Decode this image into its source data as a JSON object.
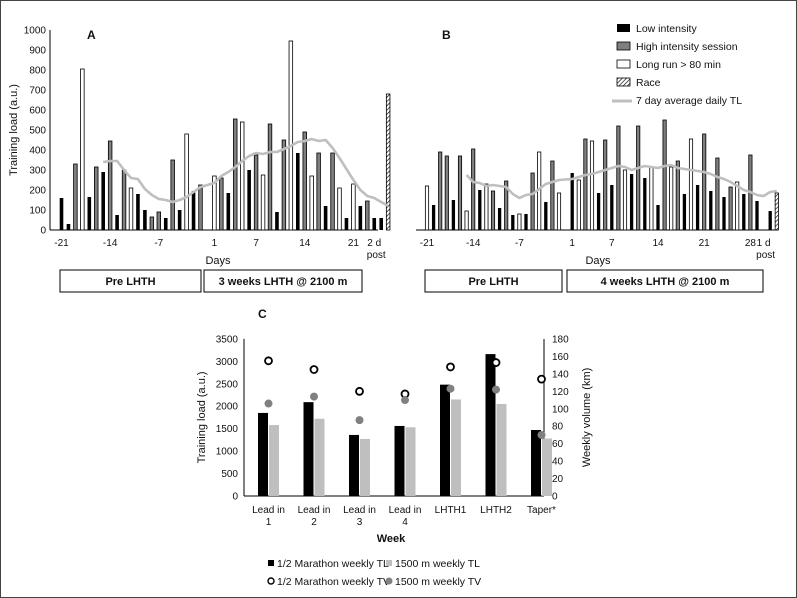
{
  "chart_data": [
    {
      "panel": "A",
      "type": "bar",
      "ylabel": "Training load (a.u.)",
      "xlabel": "Days",
      "ylim": [
        0,
        1000
      ],
      "yticks": [
        0,
        100,
        200,
        300,
        400,
        500,
        600,
        700,
        800,
        900,
        1000
      ],
      "xticks": [
        {
          "day": -21,
          "label": "-21"
        },
        {
          "day": -14,
          "label": "-14"
        },
        {
          "day": -7,
          "label": "-7"
        },
        {
          "day": 1,
          "label": "1"
        },
        {
          "day": 7,
          "label": "7"
        },
        {
          "day": 14,
          "label": "14"
        },
        {
          "day": 21,
          "label": "21"
        },
        {
          "day": 24,
          "label": "2 d"
        }
      ],
      "post_label": "post",
      "phases": [
        {
          "label": "Pre LHTH"
        },
        {
          "label": "3 weeks LHTH @ 2100 m"
        }
      ],
      "bars": [
        {
          "day": -21,
          "type": "low",
          "value": 160
        },
        {
          "day": -20,
          "type": "low",
          "value": 30
        },
        {
          "day": -19,
          "type": "high",
          "value": 330
        },
        {
          "day": -18,
          "type": "long",
          "value": 805
        },
        {
          "day": -17,
          "type": "low",
          "value": 165
        },
        {
          "day": -16,
          "type": "high",
          "value": 315
        },
        {
          "day": -15,
          "type": "low",
          "value": 290
        },
        {
          "day": -14,
          "type": "high",
          "value": 445
        },
        {
          "day": -13,
          "type": "low",
          "value": 75
        },
        {
          "day": -12,
          "type": "high",
          "value": 300
        },
        {
          "day": -11,
          "type": "long",
          "value": 210
        },
        {
          "day": -10,
          "type": "low",
          "value": 180
        },
        {
          "day": -9,
          "type": "low",
          "value": 100
        },
        {
          "day": -8,
          "type": "high",
          "value": 65
        },
        {
          "day": -7,
          "type": "high",
          "value": 90
        },
        {
          "day": -6,
          "type": "low",
          "value": 60
        },
        {
          "day": -5,
          "type": "high",
          "value": 350
        },
        {
          "day": -4,
          "type": "low",
          "value": 100
        },
        {
          "day": -3,
          "type": "long",
          "value": 480
        },
        {
          "day": -2,
          "type": "low",
          "value": 195
        },
        {
          "day": -1,
          "type": "high",
          "value": 225
        },
        {
          "day": 1,
          "type": "long",
          "value": 270
        },
        {
          "day": 2,
          "type": "high",
          "value": 260
        },
        {
          "day": 3,
          "type": "low",
          "value": 185
        },
        {
          "day": 4,
          "type": "high",
          "value": 555
        },
        {
          "day": 5,
          "type": "long",
          "value": 540
        },
        {
          "day": 6,
          "type": "low",
          "value": 300
        },
        {
          "day": 7,
          "type": "high",
          "value": 375
        },
        {
          "day": 8,
          "type": "long",
          "value": 275
        },
        {
          "day": 9,
          "type": "high",
          "value": 530
        },
        {
          "day": 10,
          "type": "low",
          "value": 90
        },
        {
          "day": 11,
          "type": "high",
          "value": 450
        },
        {
          "day": 12,
          "type": "long",
          "value": 945
        },
        {
          "day": 13,
          "type": "low",
          "value": 385
        },
        {
          "day": 14,
          "type": "high",
          "value": 490
        },
        {
          "day": 15,
          "type": "long",
          "value": 270
        },
        {
          "day": 16,
          "type": "high",
          "value": 385
        },
        {
          "day": 17,
          "type": "low",
          "value": 120
        },
        {
          "day": 18,
          "type": "high",
          "value": 385
        },
        {
          "day": 19,
          "type": "long",
          "value": 210
        },
        {
          "day": 20,
          "type": "low",
          "value": 60
        },
        {
          "day": 21,
          "type": "long",
          "value": 230
        },
        {
          "day": 22,
          "type": "low",
          "value": 120
        },
        {
          "day": 23,
          "type": "high",
          "value": 145
        },
        {
          "day": 24,
          "type": "low",
          "value": 60
        },
        {
          "day": 25,
          "type": "low",
          "value": 60
        },
        {
          "day": 26,
          "type": "race",
          "value": 680
        }
      ],
      "avg_line": [
        {
          "day": -15,
          "value": 340
        },
        {
          "day": -14,
          "value": 345
        },
        {
          "day": -13,
          "value": 345
        },
        {
          "day": -12,
          "value": 300
        },
        {
          "day": -11,
          "value": 260
        },
        {
          "day": -10,
          "value": 255
        },
        {
          "day": -9,
          "value": 205
        },
        {
          "day": -8,
          "value": 175
        },
        {
          "day": -7,
          "value": 155
        },
        {
          "day": -6,
          "value": 150
        },
        {
          "day": -5,
          "value": 140
        },
        {
          "day": -4,
          "value": 150
        },
        {
          "day": -3,
          "value": 165
        },
        {
          "day": -2,
          "value": 190
        },
        {
          "day": -1,
          "value": 215
        },
        {
          "day": 1,
          "value": 235
        },
        {
          "day": 2,
          "value": 270
        },
        {
          "day": 3,
          "value": 290
        },
        {
          "day": 4,
          "value": 315
        },
        {
          "day": 5,
          "value": 345
        },
        {
          "day": 6,
          "value": 370
        },
        {
          "day": 7,
          "value": 385
        },
        {
          "day": 8,
          "value": 380
        },
        {
          "day": 9,
          "value": 390
        },
        {
          "day": 10,
          "value": 390
        },
        {
          "day": 11,
          "value": 405
        },
        {
          "day": 12,
          "value": 420
        },
        {
          "day": 13,
          "value": 440
        },
        {
          "day": 14,
          "value": 445
        },
        {
          "day": 15,
          "value": 455
        },
        {
          "day": 16,
          "value": 445
        },
        {
          "day": 17,
          "value": 450
        },
        {
          "day": 18,
          "value": 410
        },
        {
          "day": 19,
          "value": 360
        },
        {
          "day": 20,
          "value": 305
        },
        {
          "day": 21,
          "value": 250
        },
        {
          "day": 22,
          "value": 200
        },
        {
          "day": 23,
          "value": 170
        },
        {
          "day": 24,
          "value": 160
        },
        {
          "day": 25,
          "value": 140
        },
        {
          "day": 26,
          "value": 120
        }
      ]
    },
    {
      "panel": "B",
      "type": "bar",
      "xlabel": "Days",
      "ylim": [
        0,
        1000
      ],
      "xticks": [
        {
          "day": -21,
          "label": "-21"
        },
        {
          "day": -14,
          "label": "-14"
        },
        {
          "day": -7,
          "label": "-7"
        },
        {
          "day": 1,
          "label": "1"
        },
        {
          "day": 7,
          "label": "7"
        },
        {
          "day": 14,
          "label": "14"
        },
        {
          "day": 21,
          "label": "21"
        },
        {
          "day": 28,
          "label": "28"
        },
        {
          "day": 30,
          "label": "1 d"
        }
      ],
      "post_label": "post",
      "phases": [
        {
          "label": "Pre LHTH"
        },
        {
          "label": "4 weeks LHTH @ 2100 m"
        }
      ],
      "legend": [
        {
          "key": "low",
          "label": "Low intensity",
          "color": "#000000"
        },
        {
          "key": "high",
          "label": "High intensity session",
          "color": "#7f7f7f"
        },
        {
          "key": "long",
          "label": "Long run > 80 min",
          "color": "#ffffff"
        },
        {
          "key": "race",
          "label": "Race",
          "color": "hatched"
        },
        {
          "key": "avg",
          "label": "7 day average daily TL",
          "color": "#bfbfbf"
        }
      ],
      "bars": [
        {
          "day": -21,
          "type": "long",
          "value": 220
        },
        {
          "day": -20,
          "type": "low",
          "value": 125
        },
        {
          "day": -19,
          "type": "high",
          "value": 390
        },
        {
          "day": -18,
          "type": "high",
          "value": 370
        },
        {
          "day": -17,
          "type": "low",
          "value": 150
        },
        {
          "day": -16,
          "type": "high",
          "value": 370
        },
        {
          "day": -15,
          "type": "long",
          "value": 95
        },
        {
          "day": -14,
          "type": "high",
          "value": 405
        },
        {
          "day": -13,
          "type": "low",
          "value": 200
        },
        {
          "day": -12,
          "type": "long",
          "value": 230
        },
        {
          "day": -11,
          "type": "high",
          "value": 195
        },
        {
          "day": -10,
          "type": "low",
          "value": 110
        },
        {
          "day": -9,
          "type": "high",
          "value": 245
        },
        {
          "day": -8,
          "type": "low",
          "value": 75
        },
        {
          "day": -7,
          "type": "long",
          "value": 80
        },
        {
          "day": -6,
          "type": "low",
          "value": 80
        },
        {
          "day": -5,
          "type": "high",
          "value": 285
        },
        {
          "day": -4,
          "type": "long",
          "value": 390
        },
        {
          "day": -3,
          "type": "low",
          "value": 140
        },
        {
          "day": -2,
          "type": "high",
          "value": 345
        },
        {
          "day": -1,
          "type": "long",
          "value": 185
        },
        {
          "day": 1,
          "type": "low",
          "value": 285
        },
        {
          "day": 2,
          "type": "long",
          "value": 250
        },
        {
          "day": 3,
          "type": "high",
          "value": 455
        },
        {
          "day": 4,
          "type": "long",
          "value": 445
        },
        {
          "day": 5,
          "type": "low",
          "value": 185
        },
        {
          "day": 6,
          "type": "high",
          "value": 450
        },
        {
          "day": 7,
          "type": "low",
          "value": 225
        },
        {
          "day": 8,
          "type": "high",
          "value": 520
        },
        {
          "day": 9,
          "type": "long",
          "value": 300
        },
        {
          "day": 10,
          "type": "low",
          "value": 280
        },
        {
          "day": 11,
          "type": "high",
          "value": 520
        },
        {
          "day": 12,
          "type": "low",
          "value": 260
        },
        {
          "day": 13,
          "type": "long",
          "value": 315
        },
        {
          "day": 14,
          "type": "low",
          "value": 125
        },
        {
          "day": 15,
          "type": "high",
          "value": 550
        },
        {
          "day": 16,
          "type": "long",
          "value": 315
        },
        {
          "day": 17,
          "type": "high",
          "value": 345
        },
        {
          "day": 18,
          "type": "low",
          "value": 180
        },
        {
          "day": 19,
          "type": "long",
          "value": 455
        },
        {
          "day": 20,
          "type": "low",
          "value": 225
        },
        {
          "day": 21,
          "type": "high",
          "value": 480
        },
        {
          "day": 22,
          "type": "low",
          "value": 195
        },
        {
          "day": 23,
          "type": "high",
          "value": 360
        },
        {
          "day": 24,
          "type": "low",
          "value": 165
        },
        {
          "day": 25,
          "type": "high",
          "value": 215
        },
        {
          "day": 26,
          "type": "long",
          "value": 240
        },
        {
          "day": 27,
          "type": "low",
          "value": 180
        },
        {
          "day": 28,
          "type": "high",
          "value": 375
        },
        {
          "day": 29,
          "type": "low",
          "value": 145
        },
        {
          "day": 31,
          "type": "low",
          "value": 95
        },
        {
          "day": 32,
          "type": "race",
          "value": 185
        }
      ],
      "avg_line": [
        {
          "day": -15,
          "value": 275
        },
        {
          "day": -14,
          "value": 240
        },
        {
          "day": -13,
          "value": 235
        },
        {
          "day": -12,
          "value": 220
        },
        {
          "day": -11,
          "value": 225
        },
        {
          "day": -10,
          "value": 220
        },
        {
          "day": -9,
          "value": 215
        },
        {
          "day": -8,
          "value": 180
        },
        {
          "day": -7,
          "value": 160
        },
        {
          "day": -6,
          "value": 175
        },
        {
          "day": -5,
          "value": 180
        },
        {
          "day": -4,
          "value": 205
        },
        {
          "day": -3,
          "value": 230
        },
        {
          "day": -2,
          "value": 240
        },
        {
          "day": -1,
          "value": 250
        },
        {
          "day": 1,
          "value": 255
        },
        {
          "day": 2,
          "value": 265
        },
        {
          "day": 3,
          "value": 275
        },
        {
          "day": 4,
          "value": 280
        },
        {
          "day": 5,
          "value": 290
        },
        {
          "day": 6,
          "value": 300
        },
        {
          "day": 7,
          "value": 310
        },
        {
          "day": 8,
          "value": 320
        },
        {
          "day": 9,
          "value": 315
        },
        {
          "day": 10,
          "value": 300
        },
        {
          "day": 11,
          "value": 310
        },
        {
          "day": 12,
          "value": 320
        },
        {
          "day": 13,
          "value": 315
        },
        {
          "day": 14,
          "value": 310
        },
        {
          "day": 15,
          "value": 320
        },
        {
          "day": 16,
          "value": 325
        },
        {
          "day": 17,
          "value": 310
        },
        {
          "day": 18,
          "value": 305
        },
        {
          "day": 19,
          "value": 300
        },
        {
          "day": 20,
          "value": 295
        },
        {
          "day": 21,
          "value": 290
        },
        {
          "day": 22,
          "value": 280
        },
        {
          "day": 23,
          "value": 265
        },
        {
          "day": 24,
          "value": 255
        },
        {
          "day": 25,
          "value": 240
        },
        {
          "day": 26,
          "value": 220
        },
        {
          "day": 27,
          "value": 200
        },
        {
          "day": 28,
          "value": 190
        },
        {
          "day": 29,
          "value": 175
        },
        {
          "day": 30,
          "value": 170
        },
        {
          "day": 31,
          "value": 190
        },
        {
          "day": 32,
          "value": 195
        }
      ]
    },
    {
      "panel": "C",
      "type": "bar",
      "xlabel": "Week",
      "ylabel": "Training load (a.u.)",
      "ylabel_right": "Weekly volume (km)",
      "ylim": [
        0,
        3500
      ],
      "ylim_right": [
        0,
        180
      ],
      "yticks": [
        0,
        500,
        1000,
        1500,
        2000,
        2500,
        3000,
        3500
      ],
      "yticks_right": [
        0,
        20,
        40,
        60,
        80,
        100,
        120,
        140,
        160,
        180
      ],
      "categories": [
        [
          "Lead in",
          "1"
        ],
        [
          "Lead in",
          "2"
        ],
        [
          "Lead in",
          "3"
        ],
        [
          "Lead in",
          "4"
        ],
        [
          "LHTH1"
        ],
        [
          "LHTH2"
        ],
        [
          "Taper*"
        ]
      ],
      "series": [
        {
          "name": "1/2 Marathon weekly TL",
          "axis": "left",
          "kind": "bar",
          "color": "#000000",
          "values": [
            1850,
            2090,
            1360,
            1560,
            2480,
            3160,
            1470
          ]
        },
        {
          "name": "1500 m weekly TL",
          "axis": "left",
          "kind": "bar",
          "color": "#bfbfbf",
          "values": [
            1580,
            1720,
            1270,
            1530,
            2150,
            2050,
            1280
          ]
        },
        {
          "name": "1/2 Marathon weekly TV",
          "axis": "right",
          "kind": "marker",
          "color": "#ffffff",
          "values": [
            155,
            145,
            120,
            117,
            148,
            153,
            134
          ]
        },
        {
          "name": "1500 m weekly TV",
          "axis": "right",
          "kind": "marker",
          "color": "#808080",
          "values": [
            106,
            114,
            87,
            110,
            123,
            122,
            70
          ]
        }
      ]
    }
  ]
}
